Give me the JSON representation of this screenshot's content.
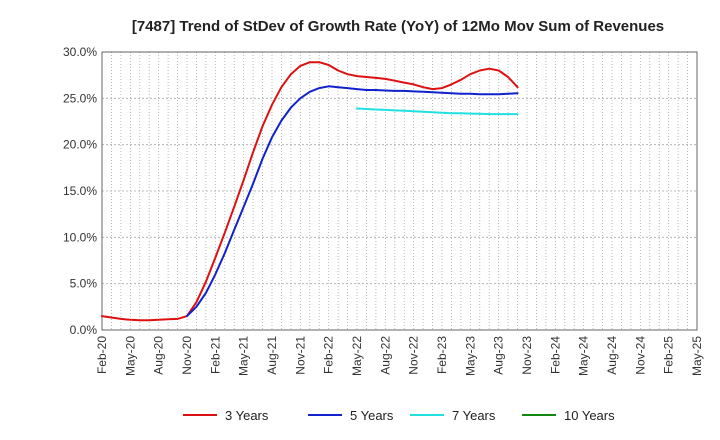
{
  "chart_data": {
    "type": "line",
    "title": "[7487]  Trend of StDev of Growth Rate (YoY) of 12Mo Mov Sum of Revenues",
    "xlabel": "",
    "ylabel": "",
    "ylim": [
      0,
      30
    ],
    "y_ticks": [
      "0.0%",
      "5.0%",
      "10.0%",
      "15.0%",
      "20.0%",
      "25.0%",
      "30.0%"
    ],
    "y_tick_values": [
      0,
      5,
      10,
      15,
      20,
      25,
      30
    ],
    "x_ticks": [
      "Feb-20",
      "May-20",
      "Aug-20",
      "Nov-20",
      "Feb-21",
      "May-21",
      "Aug-21",
      "Nov-21",
      "Feb-22",
      "May-22",
      "Aug-22",
      "Nov-22",
      "Feb-23",
      "May-23",
      "Aug-23",
      "Nov-23",
      "Feb-24",
      "May-24",
      "Aug-24",
      "Nov-24",
      "Feb-25",
      "May-25"
    ],
    "grid": "vertical-dotted-and-horizontal",
    "legend_position": "bottom",
    "series": [
      {
        "name": "3 Years",
        "color": "#dd1111",
        "start_index": 0,
        "values": [
          1.5,
          1.35,
          1.2,
          1.1,
          1.05,
          1.05,
          1.1,
          1.15,
          1.2,
          1.5,
          3.0,
          5.2,
          7.8,
          10.5,
          13.3,
          16.2,
          19.2,
          22.0,
          24.3,
          26.2,
          27.6,
          28.5,
          28.9,
          28.9,
          28.6,
          28.0,
          27.6,
          27.4,
          27.3,
          27.2,
          27.1,
          26.9,
          26.7,
          26.5,
          26.2,
          26.0,
          26.1,
          26.5,
          27.0,
          27.6,
          28.0,
          28.2,
          28.0,
          27.3,
          26.2
        ]
      },
      {
        "name": "5 Years",
        "color": "#1122cc",
        "start_index": 9,
        "values": [
          1.5,
          2.5,
          4.0,
          6.0,
          8.3,
          10.8,
          13.3,
          15.8,
          18.5,
          20.8,
          22.6,
          24.0,
          25.0,
          25.7,
          26.1,
          26.3,
          26.2,
          26.1,
          26.0,
          25.9,
          25.9,
          25.85,
          25.8,
          25.8,
          25.75,
          25.7,
          25.65,
          25.6,
          25.55,
          25.5,
          25.5,
          25.45,
          25.45,
          25.45,
          25.5,
          25.55
        ]
      },
      {
        "name": "7 Years",
        "color": "#22e0e0",
        "start_index": 27,
        "values": [
          23.9,
          23.85,
          23.8,
          23.75,
          23.7,
          23.65,
          23.6,
          23.55,
          23.5,
          23.45,
          23.4,
          23.38,
          23.35,
          23.33,
          23.3,
          23.3,
          23.3,
          23.3
        ]
      },
      {
        "name": "10 Years",
        "color": "#118811",
        "start_index": 0,
        "values": []
      }
    ]
  }
}
